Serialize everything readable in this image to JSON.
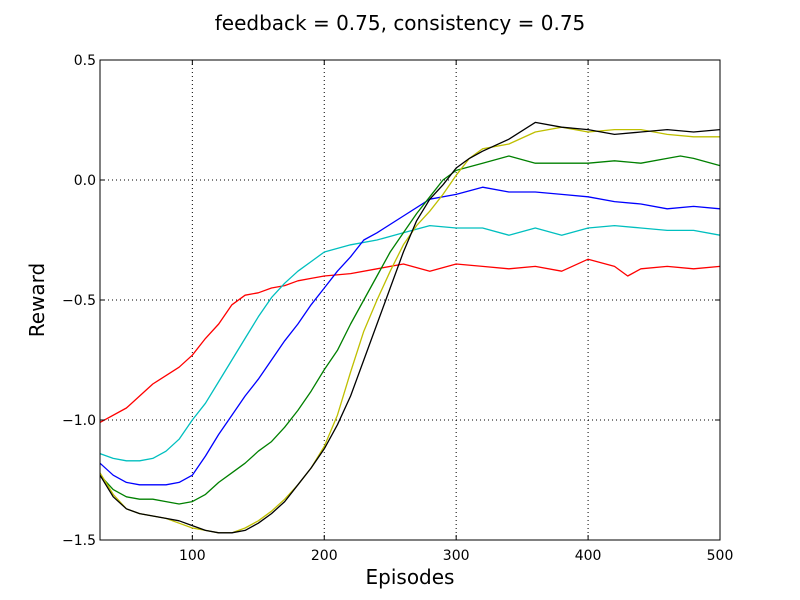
{
  "chart_data": {
    "type": "line",
    "title": "feedback = 0.75, consistency = 0.75",
    "xlabel": "Episodes",
    "ylabel": "Reward",
    "xlim": [
      30,
      500
    ],
    "ylim": [
      -1.5,
      0.5
    ],
    "xticks": [
      100,
      200,
      300,
      400,
      500
    ],
    "xtick_labels": [
      "100",
      "200",
      "300",
      "400",
      "500"
    ],
    "yticks": [
      -1.5,
      -1.0,
      -0.5,
      0.0,
      0.5
    ],
    "ytick_labels": [
      "−1.5",
      "−1.0",
      "−0.5",
      "0.0",
      "0.5"
    ],
    "grid": true,
    "legend": "none",
    "series": [
      {
        "color": "#ff0000",
        "x": [
          30,
          50,
          70,
          90,
          100,
          110,
          120,
          130,
          140,
          150,
          160,
          170,
          180,
          190,
          200,
          220,
          240,
          260,
          280,
          300,
          320,
          340,
          360,
          380,
          400,
          420,
          430,
          440,
          460,
          480,
          500
        ],
        "y": [
          -1.01,
          -0.95,
          -0.85,
          -0.78,
          -0.73,
          -0.66,
          -0.6,
          -0.52,
          -0.48,
          -0.47,
          -0.45,
          -0.44,
          -0.42,
          -0.41,
          -0.4,
          -0.39,
          -0.37,
          -0.35,
          -0.38,
          -0.35,
          -0.36,
          -0.37,
          -0.36,
          -0.38,
          -0.33,
          -0.36,
          -0.4,
          -0.37,
          -0.36,
          -0.37,
          -0.36
        ]
      },
      {
        "color": "#00bfbf",
        "x": [
          30,
          40,
          50,
          60,
          70,
          80,
          90,
          100,
          110,
          120,
          130,
          140,
          150,
          160,
          170,
          180,
          190,
          200,
          220,
          240,
          260,
          280,
          300,
          320,
          340,
          360,
          380,
          400,
          420,
          440,
          460,
          480,
          500
        ],
        "y": [
          -1.14,
          -1.16,
          -1.17,
          -1.17,
          -1.16,
          -1.13,
          -1.08,
          -1.0,
          -0.93,
          -0.84,
          -0.75,
          -0.66,
          -0.57,
          -0.49,
          -0.43,
          -0.38,
          -0.34,
          -0.3,
          -0.27,
          -0.25,
          -0.22,
          -0.19,
          -0.2,
          -0.2,
          -0.23,
          -0.2,
          -0.23,
          -0.2,
          -0.19,
          -0.2,
          -0.21,
          -0.21,
          -0.23
        ]
      },
      {
        "color": "#0000ff",
        "x": [
          30,
          40,
          50,
          60,
          70,
          80,
          90,
          100,
          110,
          120,
          130,
          140,
          150,
          160,
          170,
          180,
          190,
          200,
          210,
          220,
          230,
          240,
          260,
          280,
          300,
          320,
          340,
          360,
          380,
          400,
          420,
          440,
          460,
          480,
          500
        ],
        "y": [
          -1.18,
          -1.23,
          -1.26,
          -1.27,
          -1.27,
          -1.27,
          -1.26,
          -1.23,
          -1.15,
          -1.06,
          -0.98,
          -0.9,
          -0.83,
          -0.75,
          -0.67,
          -0.6,
          -0.52,
          -0.45,
          -0.38,
          -0.32,
          -0.25,
          -0.22,
          -0.15,
          -0.08,
          -0.06,
          -0.03,
          -0.05,
          -0.05,
          -0.06,
          -0.07,
          -0.09,
          -0.1,
          -0.12,
          -0.11,
          -0.12
        ]
      },
      {
        "color": "#008000",
        "x": [
          30,
          40,
          50,
          60,
          70,
          80,
          90,
          100,
          110,
          120,
          130,
          140,
          150,
          160,
          170,
          180,
          190,
          200,
          210,
          220,
          230,
          240,
          250,
          260,
          270,
          280,
          290,
          300,
          320,
          340,
          360,
          380,
          400,
          420,
          440,
          460,
          470,
          480,
          500
        ],
        "y": [
          -1.23,
          -1.29,
          -1.32,
          -1.33,
          -1.33,
          -1.34,
          -1.35,
          -1.34,
          -1.31,
          -1.26,
          -1.22,
          -1.18,
          -1.13,
          -1.09,
          -1.03,
          -0.96,
          -0.88,
          -0.79,
          -0.71,
          -0.6,
          -0.5,
          -0.4,
          -0.3,
          -0.22,
          -0.14,
          -0.07,
          0.0,
          0.04,
          0.07,
          0.1,
          0.07,
          0.07,
          0.07,
          0.08,
          0.07,
          0.09,
          0.1,
          0.09,
          0.06
        ]
      },
      {
        "color": "#bfbf00",
        "x": [
          30,
          40,
          50,
          60,
          70,
          80,
          90,
          100,
          110,
          120,
          130,
          140,
          150,
          160,
          170,
          180,
          190,
          200,
          210,
          220,
          230,
          240,
          250,
          260,
          270,
          280,
          290,
          300,
          310,
          320,
          340,
          360,
          380,
          400,
          420,
          440,
          460,
          480,
          500
        ],
        "y": [
          -1.22,
          -1.31,
          -1.37,
          -1.39,
          -1.4,
          -1.41,
          -1.43,
          -1.45,
          -1.46,
          -1.47,
          -1.47,
          -1.45,
          -1.42,
          -1.38,
          -1.33,
          -1.27,
          -1.2,
          -1.11,
          -0.98,
          -0.8,
          -0.63,
          -0.5,
          -0.38,
          -0.27,
          -0.19,
          -0.13,
          -0.06,
          0.02,
          0.09,
          0.13,
          0.15,
          0.2,
          0.22,
          0.2,
          0.21,
          0.21,
          0.19,
          0.18,
          0.18
        ]
      },
      {
        "color": "#000000",
        "x": [
          30,
          40,
          50,
          60,
          70,
          80,
          90,
          100,
          110,
          120,
          130,
          140,
          150,
          160,
          170,
          180,
          190,
          200,
          210,
          220,
          230,
          240,
          250,
          260,
          270,
          280,
          290,
          300,
          310,
          320,
          340,
          360,
          380,
          400,
          420,
          440,
          460,
          480,
          500
        ],
        "y": [
          -1.23,
          -1.32,
          -1.37,
          -1.39,
          -1.4,
          -1.41,
          -1.42,
          -1.44,
          -1.46,
          -1.47,
          -1.47,
          -1.46,
          -1.43,
          -1.39,
          -1.34,
          -1.27,
          -1.2,
          -1.12,
          -1.02,
          -0.9,
          -0.75,
          -0.6,
          -0.45,
          -0.3,
          -0.17,
          -0.08,
          -0.02,
          0.05,
          0.09,
          0.12,
          0.17,
          0.24,
          0.22,
          0.21,
          0.19,
          0.2,
          0.21,
          0.2,
          0.21
        ]
      }
    ]
  }
}
